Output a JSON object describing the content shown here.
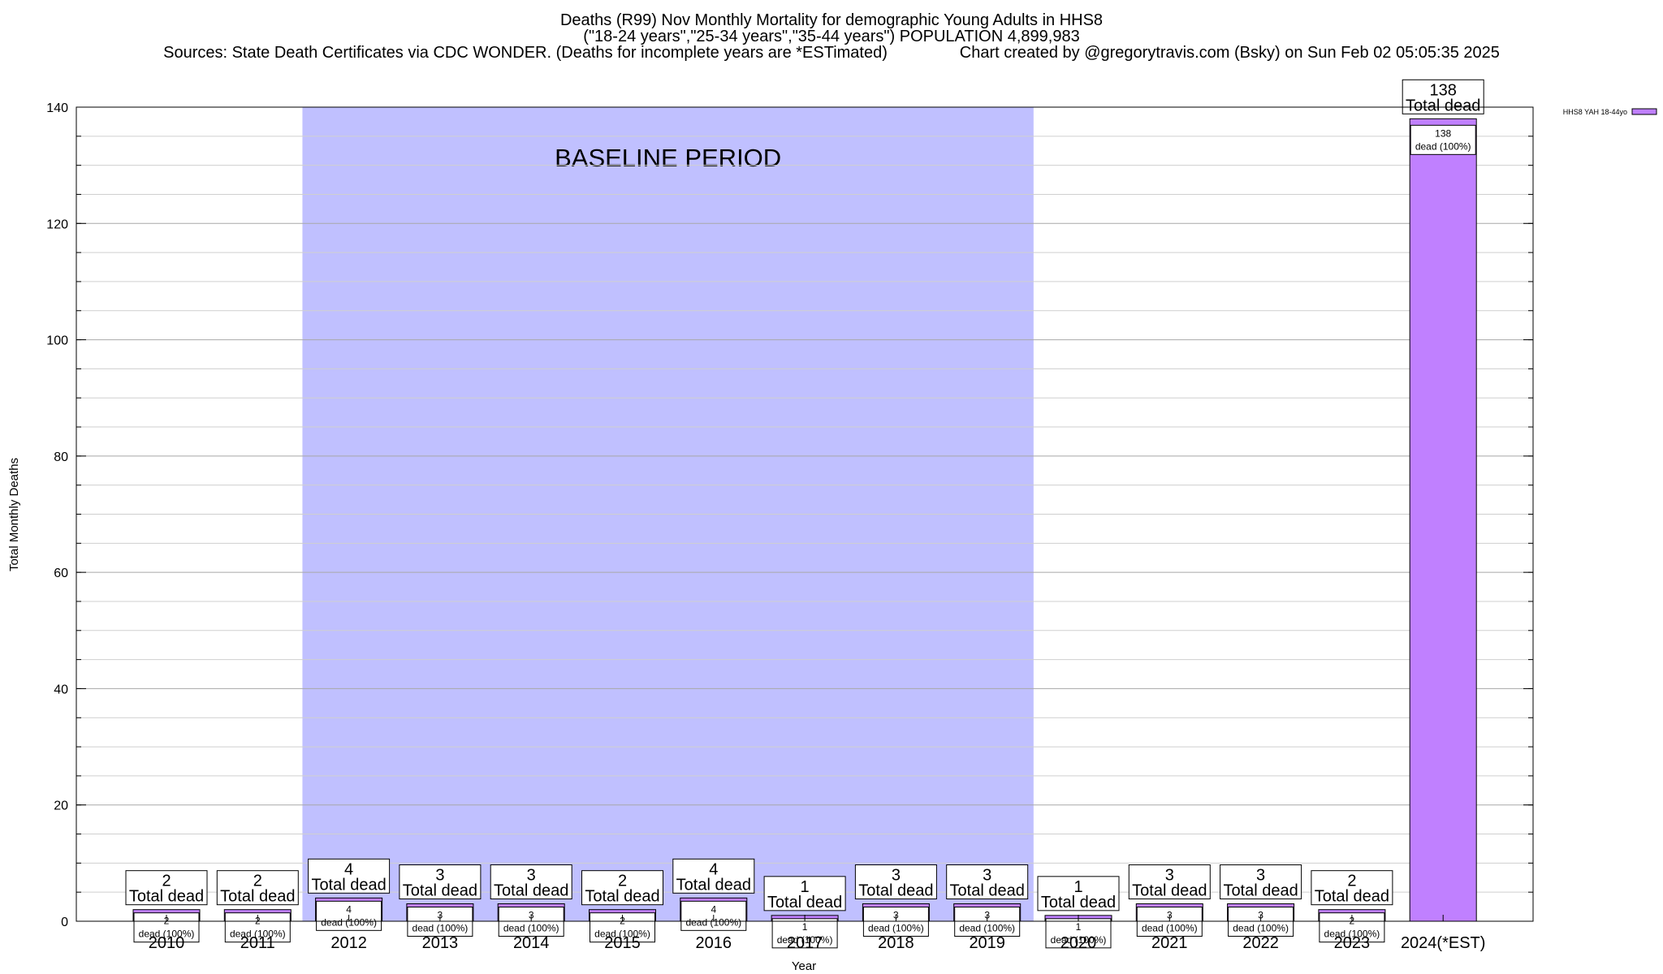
{
  "titles": {
    "line1": "Deaths (R99) Nov Monthly Mortality for demographic Young Adults in HHS8",
    "line2": "(\"18-24 years\",\"25-34 years\",\"35-44 years\") POPULATION 4,899,983",
    "line3": "Sources: State Death Certificates via CDC WONDER. (Deaths for incomplete years are *ESTimated)                Chart created by @gregorytravis.com (Bsky) on Sun Feb 02 05:05:35 2025"
  },
  "chart_data": {
    "type": "bar",
    "categories": [
      "2010",
      "2011",
      "2012",
      "2013",
      "2014",
      "2015",
      "2016",
      "2017",
      "2018",
      "2019",
      "2020",
      "2021",
      "2022",
      "2023",
      "2024(*EST)"
    ],
    "series": [
      {
        "name": "HHS8 YAH 18-44yo",
        "values": [
          2,
          2,
          4,
          3,
          3,
          2,
          4,
          1,
          3,
          3,
          1,
          3,
          3,
          2,
          138
        ],
        "color": "#c080ff"
      }
    ],
    "ylim": [
      0,
      140
    ],
    "yticks": [
      0,
      20,
      40,
      60,
      80,
      100,
      120,
      140
    ],
    "ylabel": "Total Monthly Deaths",
    "xlabel": "Year",
    "grid": true,
    "legend": "top-right",
    "bar_label_top_suffix": "Total dead",
    "bar_label_inner_suffix": "dead (100%)",
    "baseline": {
      "label": "BASELINE PERIOD",
      "from_category": "2012",
      "to_category": "2019",
      "color": "#c0c0ff"
    }
  }
}
